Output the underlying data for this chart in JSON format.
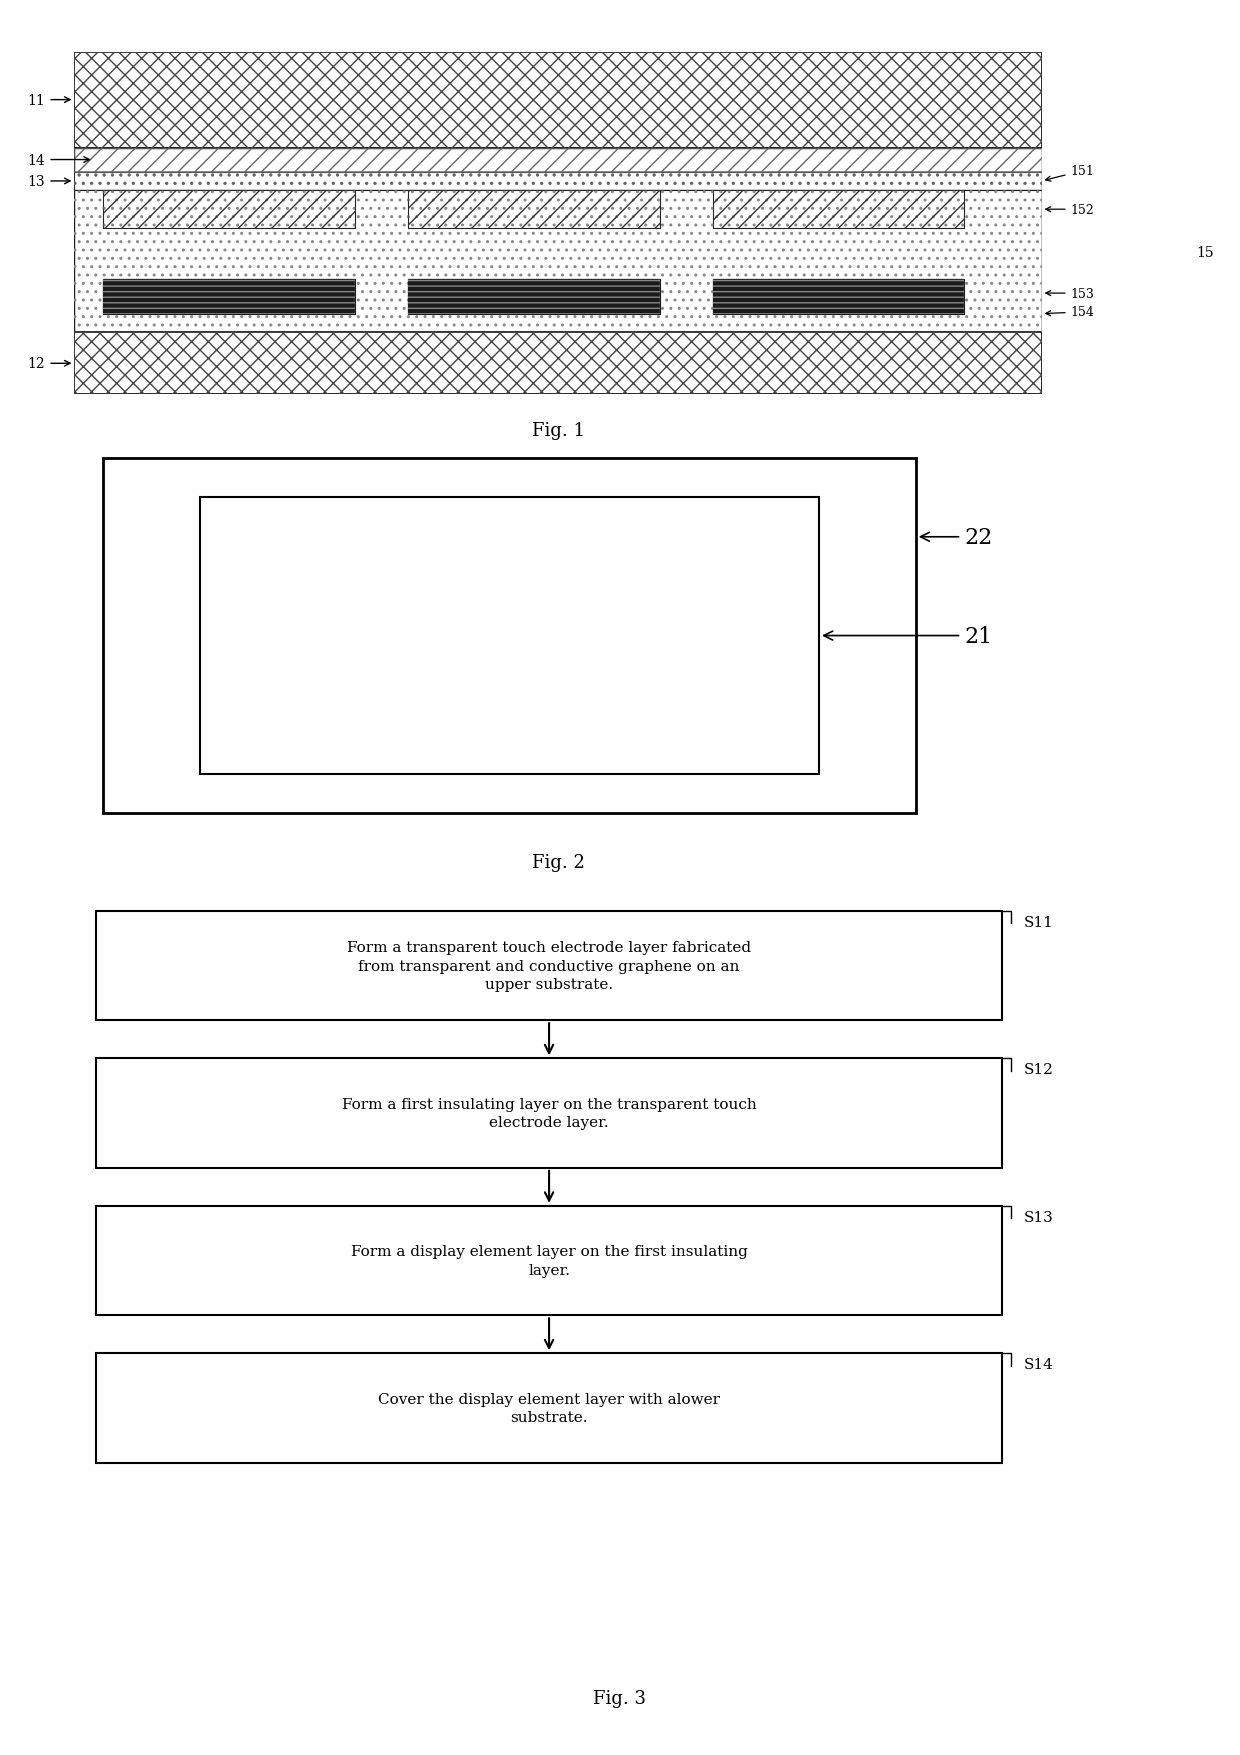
{
  "fig_width": 12.4,
  "fig_height": 17.56,
  "bg_color": "#ffffff",
  "fig1": {
    "label": "Fig. 1"
  },
  "fig2": {
    "label": "Fig. 2"
  },
  "fig3": {
    "label": "Fig. 3",
    "steps": [
      {
        "id": "S11",
        "text": "Form a transparent touch electrode layer fabricated\nfrom transparent and conductive graphene on an\nupper substrate."
      },
      {
        "id": "S12",
        "text": "Form a first insulating layer on the transparent touch\nelectrode layer."
      },
      {
        "id": "S13",
        "text": "Form a display element layer on the first insulating\nlayer."
      },
      {
        "id": "S14",
        "text": "Cover the display element layer with alower\nsubstrate."
      }
    ]
  }
}
